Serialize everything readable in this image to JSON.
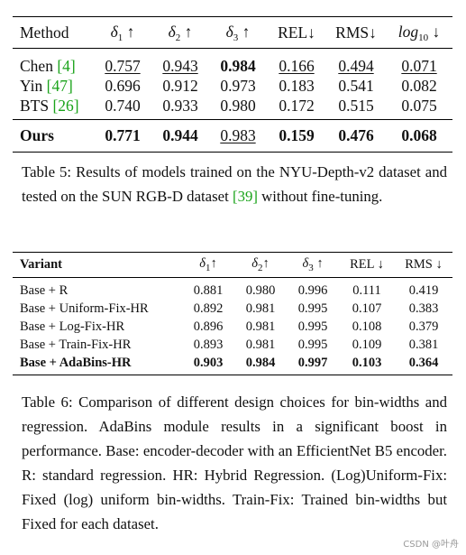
{
  "table5": {
    "headers": {
      "method": "Method",
      "d1": "δ",
      "d1_sub": "1",
      "d1_arrow": " ↑",
      "d2": "δ",
      "d2_sub": "2",
      "d2_arrow": " ↑",
      "d3": "δ",
      "d3_sub": "3",
      "d3_arrow": " ↑",
      "rel": "REL↓",
      "rms": "RMS↓",
      "log": "log",
      "log_sub": "10",
      "log_arrow": " ↓"
    },
    "rows": [
      {
        "name": "Chen ",
        "cite": "[4]",
        "d1": "0.757",
        "d2": "0.943",
        "d3": "0.984",
        "rel": "0.166",
        "rms": "0.494",
        "log": "0.071"
      },
      {
        "name": "Yin ",
        "cite": "[47]",
        "d1": "0.696",
        "d2": "0.912",
        "d3": "0.973",
        "rel": "0.183",
        "rms": "0.541",
        "log": "0.082"
      },
      {
        "name": "BTS ",
        "cite": "[26]",
        "d1": "0.740",
        "d2": "0.933",
        "d3": "0.980",
        "rel": "0.172",
        "rms": "0.515",
        "log": "0.075"
      }
    ],
    "ours": {
      "name": "Ours",
      "d1": "0.771",
      "d2": "0.944",
      "d3": "0.983",
      "rel": "0.159",
      "rms": "0.476",
      "log": "0.068"
    }
  },
  "caption5": {
    "pre": "Table 5: Results of models trained on the NYU-Depth-v2 dataset and tested on the SUN RGB-D dataset ",
    "cite": "[39]",
    "post": " without fine-tuning."
  },
  "table6": {
    "headers": {
      "variant": "Variant",
      "d1": "δ",
      "d1_sub": "1",
      "d1_arrow": "↑",
      "d2": "δ",
      "d2_sub": "2",
      "d2_arrow": "↑",
      "d3": "δ",
      "d3_sub": "3",
      "d3_arrow": " ↑",
      "rel": "REL ↓",
      "rms": "RMS ↓"
    },
    "rows": [
      {
        "variant": "Base + R",
        "d1": "0.881",
        "d2": "0.980",
        "d3": "0.996",
        "rel": "0.111",
        "rms": "0.419"
      },
      {
        "variant": "Base + Uniform-Fix-HR",
        "d1": "0.892",
        "d2": "0.981",
        "d3": "0.995",
        "rel": "0.107",
        "rms": "0.383"
      },
      {
        "variant": "Base + Log-Fix-HR",
        "d1": "0.896",
        "d2": "0.981",
        "d3": "0.995",
        "rel": "0.108",
        "rms": "0.379"
      },
      {
        "variant": "Base + Train-Fix-HR",
        "d1": "0.893",
        "d2": "0.981",
        "d3": "0.995",
        "rel": "0.109",
        "rms": "0.381"
      },
      {
        "variant": "Base + AdaBins-HR",
        "d1": "0.903",
        "d2": "0.984",
        "d3": "0.997",
        "rel": "0.103",
        "rms": "0.364"
      }
    ]
  },
  "caption6": "Table 6: Comparison of different design choices for bin-widths and regression. AdaBins module results in a significant boost in performance. Base: encoder-decoder with an EfficientNet B5 encoder. R: standard regression. HR: Hybrid Regression. (Log)Uniform-Fix: Fixed (log) uniform bin-widths. Train-Fix: Trained bin-widths but Fixed for each dataset.",
  "watermark": "CSDN @叶舟"
}
